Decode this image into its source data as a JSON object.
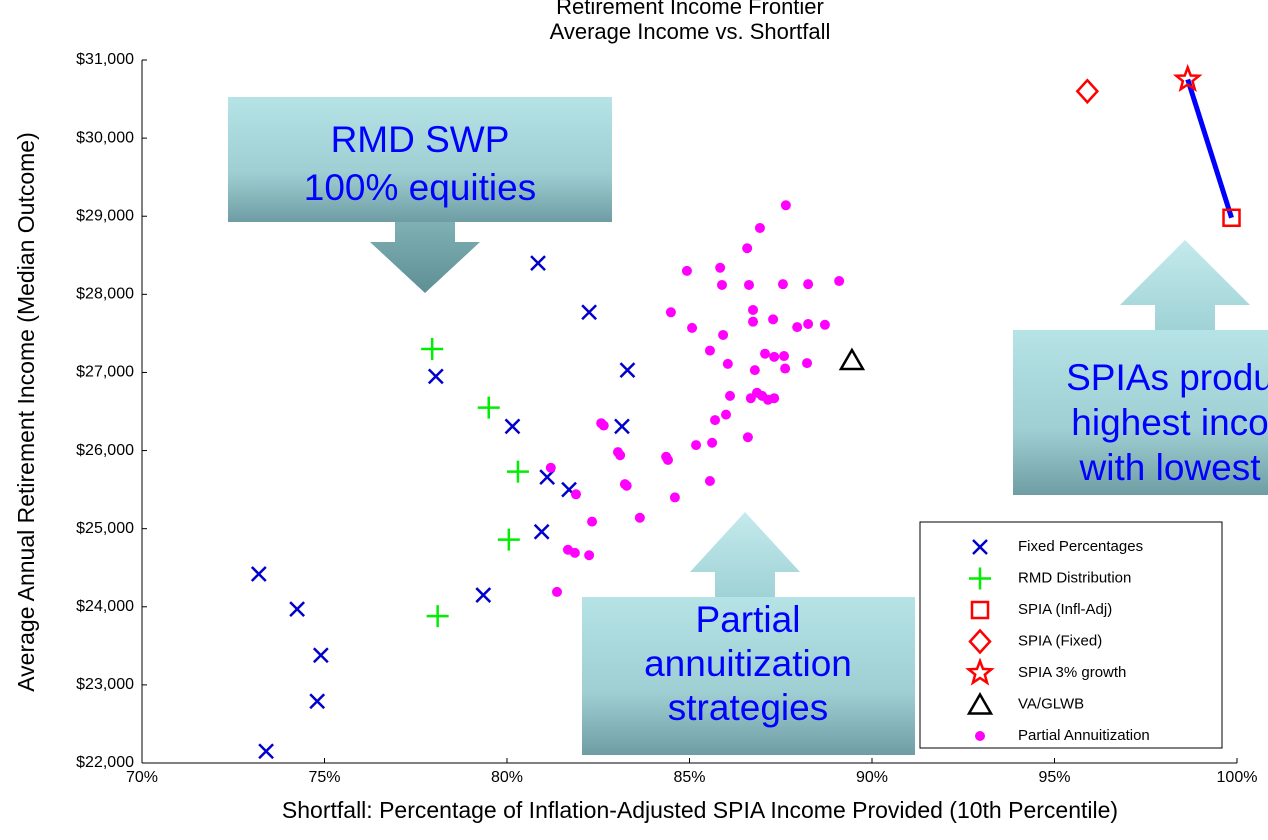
{
  "chart_data": {
    "type": "scatter",
    "title": [
      "Retirement Income Frontier",
      "Average Income vs. Shortfall"
    ],
    "x_label": "Shortfall: Percentage of Inflation-Adjusted SPIA Income Provided (10th Percentile)",
    "y_label": "Average Annual Retirement Income (Median Outcome)",
    "xlim": [
      70,
      100
    ],
    "xticks": [
      {
        "value": 70,
        "label": "70%"
      },
      {
        "value": 75,
        "label": "75%"
      },
      {
        "value": 80,
        "label": "80%"
      },
      {
        "value": 85,
        "label": "85%"
      },
      {
        "value": 90,
        "label": "90%"
      },
      {
        "value": 95,
        "label": "95%"
      },
      {
        "value": 100,
        "label": "100%"
      }
    ],
    "ylim": [
      22000,
      31000
    ],
    "yticks": [
      {
        "value": 22000,
        "label": "$22,000"
      },
      {
        "value": 23000,
        "label": "$23,000"
      },
      {
        "value": 24000,
        "label": "$24,000"
      },
      {
        "value": 25000,
        "label": "$25,000"
      },
      {
        "value": 26000,
        "label": "$26,000"
      },
      {
        "value": 27000,
        "label": "$27,000"
      },
      {
        "value": 28000,
        "label": "$28,000"
      },
      {
        "value": 29000,
        "label": "$29,000"
      },
      {
        "value": 30000,
        "label": "$30,000"
      },
      {
        "value": 31000,
        "label": "$31,000"
      }
    ],
    "grid": false,
    "legend": "lower right",
    "series": [
      {
        "name": "Fixed Percentages",
        "color": "#0000cc",
        "marker": "x",
        "x": [
          80.85,
          82.25,
          83.3,
          78.05,
          80.15,
          83.15,
          81.1,
          81.7,
          80.95,
          79.35,
          73.2,
          74.25,
          74.9,
          74.8,
          73.4
        ],
        "values": [
          28400,
          27770,
          27030,
          26950,
          26310,
          26310,
          25660,
          25500,
          24960,
          24150,
          24420,
          23970,
          23380,
          22790,
          22150
        ]
      },
      {
        "name": "RMD Distribution",
        "color": "#00ee00",
        "marker": "plus",
        "x": [
          77.95,
          79.5,
          80.3,
          80.05,
          78.1
        ],
        "values": [
          27300,
          26550,
          25730,
          24860,
          23880
        ]
      },
      {
        "name": "SPIA (Infl-Adj)",
        "color": "#ff0000",
        "marker": "square",
        "x": [
          99.85
        ],
        "values": [
          28980
        ]
      },
      {
        "name": "SPIA (Fixed)",
        "color": "#ff0000",
        "marker": "diamond",
        "x": [
          95.9
        ],
        "values": [
          30600
        ]
      },
      {
        "name": "SPIA 3% growth",
        "color": "#ff0000",
        "marker": "star",
        "x": [
          98.65
        ],
        "values": [
          30750
        ]
      },
      {
        "name": "VA/GLWB",
        "color": "#000000",
        "marker": "triangle",
        "x": [
          89.45
        ],
        "values": [
          27160
        ]
      },
      {
        "name": "Partial Annuitization",
        "color": "#ff00ff",
        "marker": "dot",
        "x": [
          86.93,
          87.64,
          86.58,
          85.84,
          84.93,
          85.89,
          86.63,
          87.56,
          88.25,
          89.1,
          84.49,
          85.07,
          85.92,
          86.74,
          87.29,
          86.74,
          87.95,
          88.25,
          88.71,
          85.56,
          87.07,
          87.32,
          87.59,
          86.79,
          87.62,
          86.05,
          88.22,
          86.85,
          87.15,
          86.68,
          86.99,
          87.32,
          86.11,
          85.7,
          86.0,
          86.6,
          82.58,
          82.65,
          83.04,
          83.1,
          84.36,
          84.41,
          85.62,
          85.18,
          81.2,
          81.89,
          85.56,
          84.6,
          83.23,
          83.28,
          83.64,
          82.33,
          81.67,
          81.86,
          82.25,
          81.37
        ],
        "values": [
          28850,
          29140,
          28590,
          28340,
          28300,
          28120,
          28120,
          28130,
          28130,
          28170,
          27770,
          27570,
          27480,
          27800,
          27680,
          27650,
          27580,
          27620,
          27610,
          27280,
          27240,
          27200,
          27210,
          27030,
          27050,
          27110,
          27120,
          26740,
          26650,
          26670,
          26700,
          26670,
          26700,
          26390,
          26460,
          26170,
          26350,
          26320,
          25980,
          25940,
          25920,
          25880,
          26100,
          26070,
          25780,
          25440,
          25610,
          25400,
          25570,
          25550,
          25140,
          25090,
          24730,
          24690,
          24660,
          24190
        ]
      }
    ],
    "annotations": [
      {
        "lines": [
          "RMD SWP",
          "100% equities"
        ]
      },
      {
        "lines": [
          "SPIAs produ",
          "highest inco",
          "with lowest"
        ]
      },
      {
        "lines": [
          "Partial",
          "annuitization",
          "strategies"
        ]
      }
    ]
  }
}
